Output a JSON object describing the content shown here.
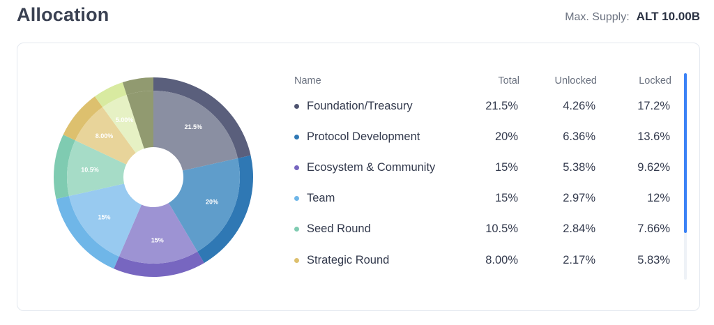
{
  "header": {
    "title": "Allocation",
    "supply_label": "Max. Supply:",
    "supply_value": "ALT 10.00B"
  },
  "table": {
    "columns": [
      "Name",
      "Total",
      "Unlocked",
      "Locked"
    ],
    "rows": [
      {
        "name": "Foundation/Treasury",
        "total": "21.5%",
        "unlocked": "4.26%",
        "locked": "17.2%",
        "color": "#4f5470"
      },
      {
        "name": "Protocol Development",
        "total": "20%",
        "unlocked": "6.36%",
        "locked": "13.6%",
        "color": "#2f78b4"
      },
      {
        "name": "Ecosystem & Community",
        "total": "15%",
        "unlocked": "5.38%",
        "locked": "9.62%",
        "color": "#7766c0"
      },
      {
        "name": "Team",
        "total": "15%",
        "unlocked": "2.97%",
        "locked": "12%",
        "color": "#6fb6e8"
      },
      {
        "name": "Seed Round",
        "total": "10.5%",
        "unlocked": "2.84%",
        "locked": "7.66%",
        "color": "#7fcbb1"
      },
      {
        "name": "Strategic Round",
        "total": "8.00%",
        "unlocked": "2.17%",
        "locked": "5.83%",
        "color": "#ddc06e"
      }
    ]
  },
  "chart_data": {
    "type": "pie",
    "subtype": "donut",
    "categories": [
      "Foundation/Treasury",
      "Protocol Development",
      "Ecosystem & Community",
      "Team",
      "Seed Round",
      "Strategic Round",
      "",
      ""
    ],
    "values": [
      21.5,
      20,
      15,
      15,
      10.5,
      8.0,
      5.0,
      5.0
    ],
    "labels": [
      "21.5%",
      "20%",
      "15%",
      "15%",
      "10.5%",
      "8.00%",
      "5.00%",
      ""
    ],
    "colors": [
      "#5a5f7c",
      "#2f78b4",
      "#7766c0",
      "#6fb6e8",
      "#7fcbb1",
      "#ddc06e",
      "#d8eaa0",
      "#919a70"
    ],
    "inner_colors": [
      "#8a8fa2",
      "#5f9dcb",
      "#9d93d3",
      "#98caf0",
      "#a6dcc7",
      "#e8d49a",
      "#e6f1c4",
      "#919a70"
    ]
  }
}
